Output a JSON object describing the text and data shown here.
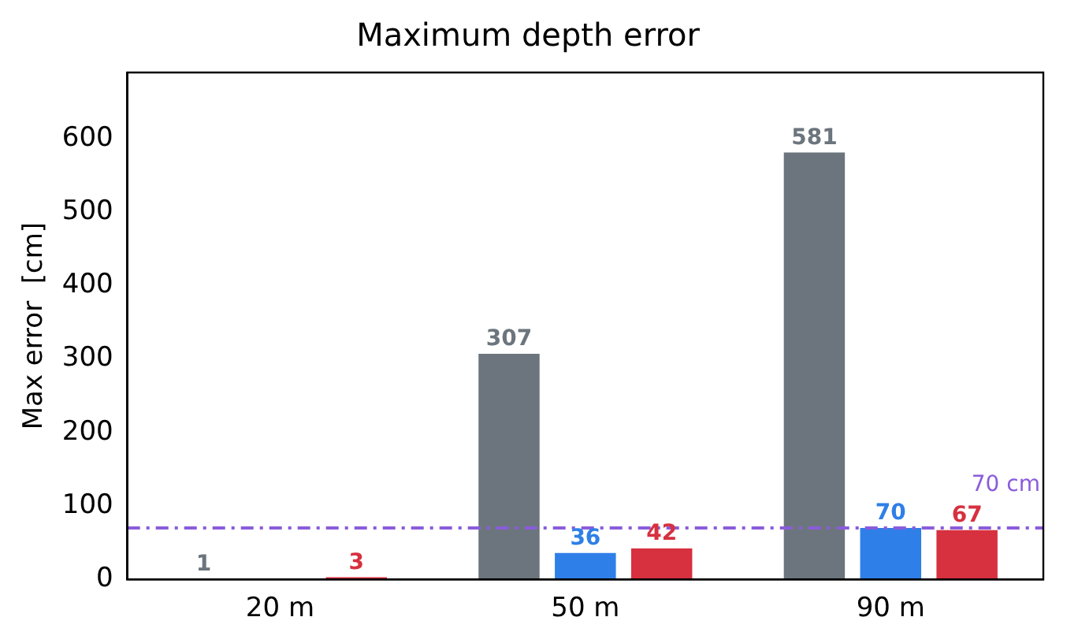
{
  "chart_data": {
    "type": "bar",
    "title": "Maximum depth error",
    "ylabel": "Max error  [cm]",
    "categories": [
      "20 m",
      "50 m",
      "90 m"
    ],
    "series": [
      {
        "color": "#6c757d",
        "values": [
          1,
          307,
          581
        ]
      },
      {
        "color": "#2f7fe8",
        "values": [
          null,
          36,
          70
        ]
      },
      {
        "color": "#d7303f",
        "values": [
          3,
          42,
          67
        ]
      }
    ],
    "ylim": [
      0,
      690
    ],
    "yticks": [
      0,
      100,
      200,
      300,
      400,
      500,
      600
    ],
    "grid": false,
    "legend": false,
    "data_labels": true,
    "ref_lines": [
      {
        "axis": "y",
        "value": 70,
        "label": "70 cm",
        "color": "#8a5cdb",
        "line_style": "dashdot"
      }
    ]
  }
}
